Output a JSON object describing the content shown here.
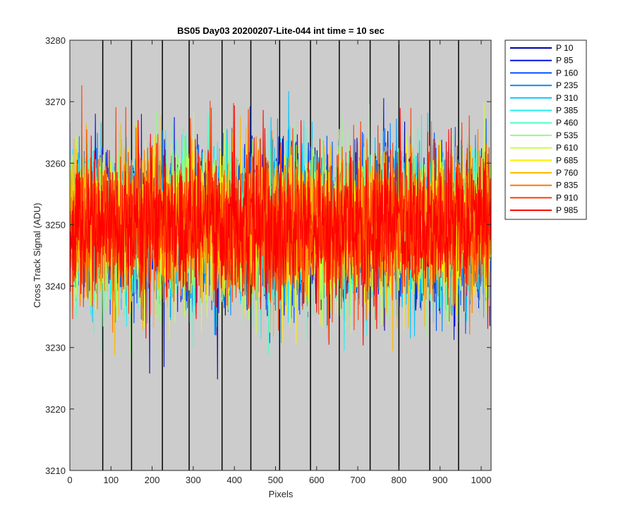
{
  "chart_data": {
    "type": "line",
    "title": "BS05 Day03 20200207-Lite-044 int time = 10 sec",
    "xlabel": "Pixels",
    "ylabel": "Cross Track Signal (ADU)",
    "xlim": [
      0,
      1024
    ],
    "ylim": [
      3210,
      3280
    ],
    "xticks": [
      0,
      100,
      200,
      300,
      400,
      500,
      600,
      700,
      800,
      900,
      1000
    ],
    "yticks": [
      3210,
      3220,
      3230,
      3240,
      3250,
      3260,
      3270,
      3280
    ],
    "background_color": "#cccccc",
    "tap_boundaries": [
      80,
      150,
      225,
      290,
      370,
      440,
      510,
      585,
      655,
      730,
      800,
      875,
      945
    ],
    "noise_model": {
      "mean": 3250,
      "sigma": 6,
      "n_points": 1024
    },
    "legend_position": "outside-top-right",
    "series": [
      {
        "name": "P 10",
        "color": "#0000a8"
      },
      {
        "name": "P 85",
        "color": "#0014e0"
      },
      {
        "name": "P 160",
        "color": "#0050ff"
      },
      {
        "name": "P 235",
        "color": "#0090ff"
      },
      {
        "name": "P 310",
        "color": "#00c8ff"
      },
      {
        "name": "P 385",
        "color": "#20f0f0"
      },
      {
        "name": "P 460",
        "color": "#50ffc0"
      },
      {
        "name": "P 535",
        "color": "#90ff80"
      },
      {
        "name": "P 610",
        "color": "#c8ff40"
      },
      {
        "name": "P 685",
        "color": "#fff000"
      },
      {
        "name": "P 760",
        "color": "#ffb800"
      },
      {
        "name": "P 835",
        "color": "#ff7800"
      },
      {
        "name": "P 910",
        "color": "#ff3c00"
      },
      {
        "name": "P 985",
        "color": "#ff0000"
      }
    ]
  }
}
